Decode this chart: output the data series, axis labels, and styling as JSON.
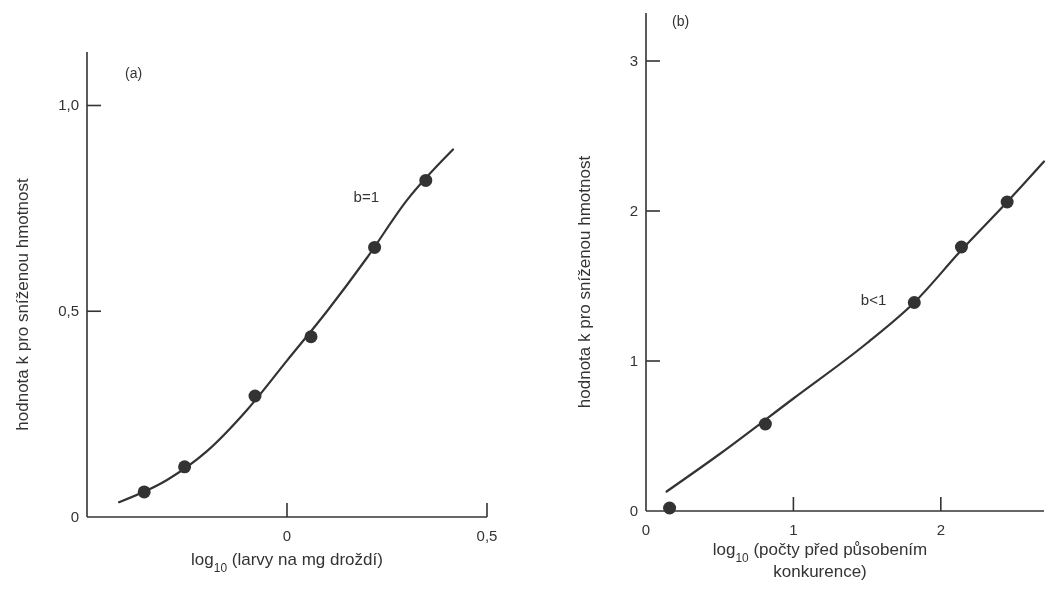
{
  "chart_data": [
    {
      "type": "scatter",
      "title": "(a)",
      "xlabel": "log$_{10}$ (larvy na mg droždí)",
      "ylabel": "hodnota k pro sníženou hmotnost",
      "xlim": [
        -0.5,
        0.5
      ],
      "ylim": [
        0,
        1.13
      ],
      "xticks": [
        0,
        {
          "value": 0.5,
          "label": "0,5"
        }
      ],
      "yticks": [
        0,
        {
          "value": 0.5,
          "label": "0,5"
        },
        {
          "value": 1,
          "label": "1,0"
        }
      ],
      "grid": false,
      "series": [
        {
          "color": "#333333",
          "marker": "circle",
          "x": [
            -0.357,
            -0.256,
            -0.08,
            0.06,
            0.219,
            0.347
          ],
          "values": [
            0.061,
            0.122,
            0.294,
            0.438,
            0.655,
            0.818
          ]
        },
        {
          "type": "line",
          "name": "b=1",
          "color": "#333333",
          "marker": "none",
          "line_style": "solid",
          "x": [
            -0.42,
            -0.3,
            -0.2,
            -0.1,
            0,
            0.1,
            0.2,
            0.3,
            0.415
          ],
          "values": [
            0.036,
            0.09,
            0.16,
            0.26,
            0.38,
            0.5,
            0.63,
            0.77,
            0.893
          ]
        }
      ]
    },
    {
      "type": "scatter",
      "title": "(b)",
      "xlabel": "log$_{10}$ (počty před působením konkurence)",
      "ylabel": "hodnota k pro sníženou hmotnost",
      "xlim": [
        0,
        2.7
      ],
      "ylim": [
        0,
        3.32
      ],
      "xticks": [
        0,
        1,
        2
      ],
      "yticks": [
        0,
        1,
        2,
        3
      ],
      "grid": false,
      "series": [
        {
          "color": "#333333",
          "marker": "circle",
          "x": [
            0.16,
            0.81,
            1.82,
            2.14,
            2.45
          ],
          "values": [
            0.02,
            0.58,
            1.39,
            1.76,
            2.06
          ]
        },
        {
          "type": "line",
          "name": "b<1",
          "color": "#333333",
          "marker": "none",
          "line_style": "solid",
          "x": [
            0.14,
            0.5,
            1,
            1.5,
            1.82,
            2.14,
            2.45,
            2.7
          ],
          "values": [
            0.13,
            0.38,
            0.75,
            1.12,
            1.39,
            1.74,
            2.06,
            2.33
          ]
        }
      ]
    }
  ]
}
